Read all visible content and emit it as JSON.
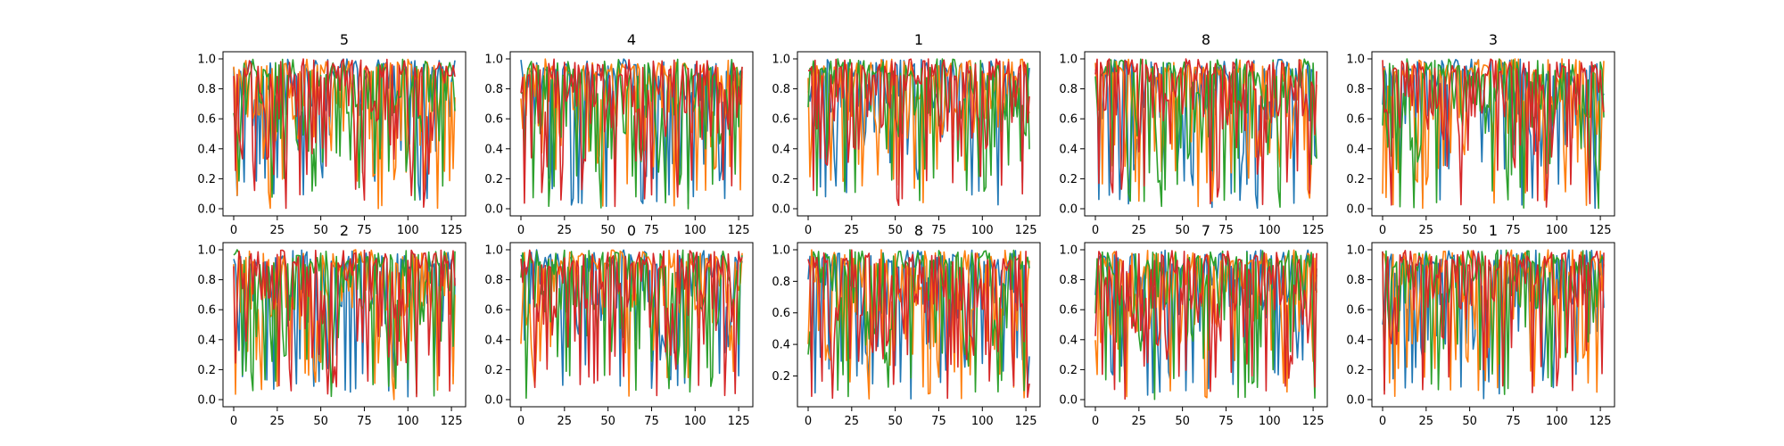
{
  "chart_data": [
    {
      "type": "line",
      "title": "5",
      "xlim": [
        0,
        127
      ],
      "ylim": [
        0.0,
        1.0
      ],
      "xticks": [
        0,
        25,
        50,
        75,
        100,
        125
      ],
      "yticks": [
        0.0,
        0.2,
        0.4,
        0.6,
        0.8,
        1.0
      ],
      "xticklabels": [
        "0",
        "25",
        "50",
        "75",
        "100",
        "125"
      ],
      "yticklabels": [
        "0.0",
        "0.2",
        "0.4",
        "0.6",
        "0.8",
        "1.0"
      ],
      "seed": 5
    },
    {
      "type": "line",
      "title": "4",
      "xlim": [
        0,
        127
      ],
      "ylim": [
        0.0,
        1.0
      ],
      "xticks": [
        0,
        25,
        50,
        75,
        100,
        125
      ],
      "yticks": [
        0.0,
        0.2,
        0.4,
        0.6,
        0.8,
        1.0
      ],
      "xticklabels": [
        "0",
        "25",
        "50",
        "75",
        "100",
        "125"
      ],
      "yticklabels": [
        "0.0",
        "0.2",
        "0.4",
        "0.6",
        "0.8",
        "1.0"
      ],
      "seed": 4
    },
    {
      "type": "line",
      "title": "1",
      "xlim": [
        0,
        127
      ],
      "ylim": [
        0.0,
        1.0
      ],
      "xticks": [
        0,
        25,
        50,
        75,
        100,
        125
      ],
      "yticks": [
        0.0,
        0.2,
        0.4,
        0.6,
        0.8,
        1.0
      ],
      "xticklabels": [
        "0",
        "25",
        "50",
        "75",
        "100",
        "125"
      ],
      "yticklabels": [
        "0.0",
        "0.2",
        "0.4",
        "0.6",
        "0.8",
        "1.0"
      ],
      "seed": 11
    },
    {
      "type": "line",
      "title": "8",
      "xlim": [
        0,
        127
      ],
      "ylim": [
        0.0,
        1.0
      ],
      "xticks": [
        0,
        25,
        50,
        75,
        100,
        125
      ],
      "yticks": [
        0.0,
        0.2,
        0.4,
        0.6,
        0.8,
        1.0
      ],
      "xticklabels": [
        "0",
        "25",
        "50",
        "75",
        "100",
        "125"
      ],
      "yticklabels": [
        "0.0",
        "0.2",
        "0.4",
        "0.6",
        "0.8",
        "1.0"
      ],
      "seed": 8
    },
    {
      "type": "line",
      "title": "3",
      "xlim": [
        0,
        127
      ],
      "ylim": [
        0.0,
        1.0
      ],
      "xticks": [
        0,
        25,
        50,
        75,
        100,
        125
      ],
      "yticks": [
        0.0,
        0.2,
        0.4,
        0.6,
        0.8,
        1.0
      ],
      "xticklabels": [
        "0",
        "25",
        "50",
        "75",
        "100",
        "125"
      ],
      "yticklabels": [
        "0.0",
        "0.2",
        "0.4",
        "0.6",
        "0.8",
        "1.0"
      ],
      "seed": 3
    },
    {
      "type": "line",
      "title": "2",
      "xlim": [
        0,
        127
      ],
      "ylim": [
        0.0,
        1.0
      ],
      "xticks": [
        0,
        25,
        50,
        75,
        100,
        125
      ],
      "yticks": [
        0.0,
        0.2,
        0.4,
        0.6,
        0.8,
        1.0
      ],
      "xticklabels": [
        "0",
        "25",
        "50",
        "75",
        "100",
        "125"
      ],
      "yticklabels": [
        "0.0",
        "0.2",
        "0.4",
        "0.6",
        "0.8",
        "1.0"
      ],
      "seed": 2
    },
    {
      "type": "line",
      "title": "0",
      "xlim": [
        0,
        127
      ],
      "ylim": [
        0.0,
        1.0
      ],
      "xticks": [
        0,
        25,
        50,
        75,
        100,
        125
      ],
      "yticks": [
        0.0,
        0.2,
        0.4,
        0.6,
        0.8,
        1.0
      ],
      "xticklabels": [
        "0",
        "25",
        "50",
        "75",
        "100",
        "125"
      ],
      "yticklabels": [
        "0.0",
        "0.2",
        "0.4",
        "0.6",
        "0.8",
        "1.0"
      ],
      "seed": 10
    },
    {
      "type": "line",
      "title": "8",
      "xlim": [
        0,
        127
      ],
      "ylim": [
        0.05,
        1.0
      ],
      "xticks": [
        0,
        25,
        50,
        75,
        100,
        125
      ],
      "yticks": [
        0.2,
        0.4,
        0.6,
        0.8,
        1.0
      ],
      "xticklabels": [
        "0",
        "25",
        "50",
        "75",
        "100",
        "125"
      ],
      "yticklabels": [
        "0.2",
        "0.4",
        "0.6",
        "0.8",
        "1.0"
      ],
      "seed": 18
    },
    {
      "type": "line",
      "title": "7",
      "xlim": [
        0,
        127
      ],
      "ylim": [
        0.0,
        1.0
      ],
      "xticks": [
        0,
        25,
        50,
        75,
        100,
        125
      ],
      "yticks": [
        0.0,
        0.2,
        0.4,
        0.6,
        0.8,
        1.0
      ],
      "xticklabels": [
        "0",
        "25",
        "50",
        "75",
        "100",
        "125"
      ],
      "yticklabels": [
        "0.0",
        "0.2",
        "0.4",
        "0.6",
        "0.8",
        "1.0"
      ],
      "seed": 7
    },
    {
      "type": "line",
      "title": "1",
      "xlim": [
        0,
        127
      ],
      "ylim": [
        0.0,
        1.0
      ],
      "xticks": [
        0,
        25,
        50,
        75,
        100,
        125
      ],
      "yticks": [
        0.0,
        0.2,
        0.4,
        0.6,
        0.8,
        1.0
      ],
      "xticklabels": [
        "0",
        "25",
        "50",
        "75",
        "100",
        "125"
      ],
      "yticklabels": [
        "0.0",
        "0.2",
        "0.4",
        "0.6",
        "0.8",
        "1.0"
      ],
      "seed": 21
    }
  ],
  "series_colors": [
    "#1f77b4",
    "#ff7f0e",
    "#2ca02c",
    "#d62728"
  ],
  "points_per_series": 128
}
